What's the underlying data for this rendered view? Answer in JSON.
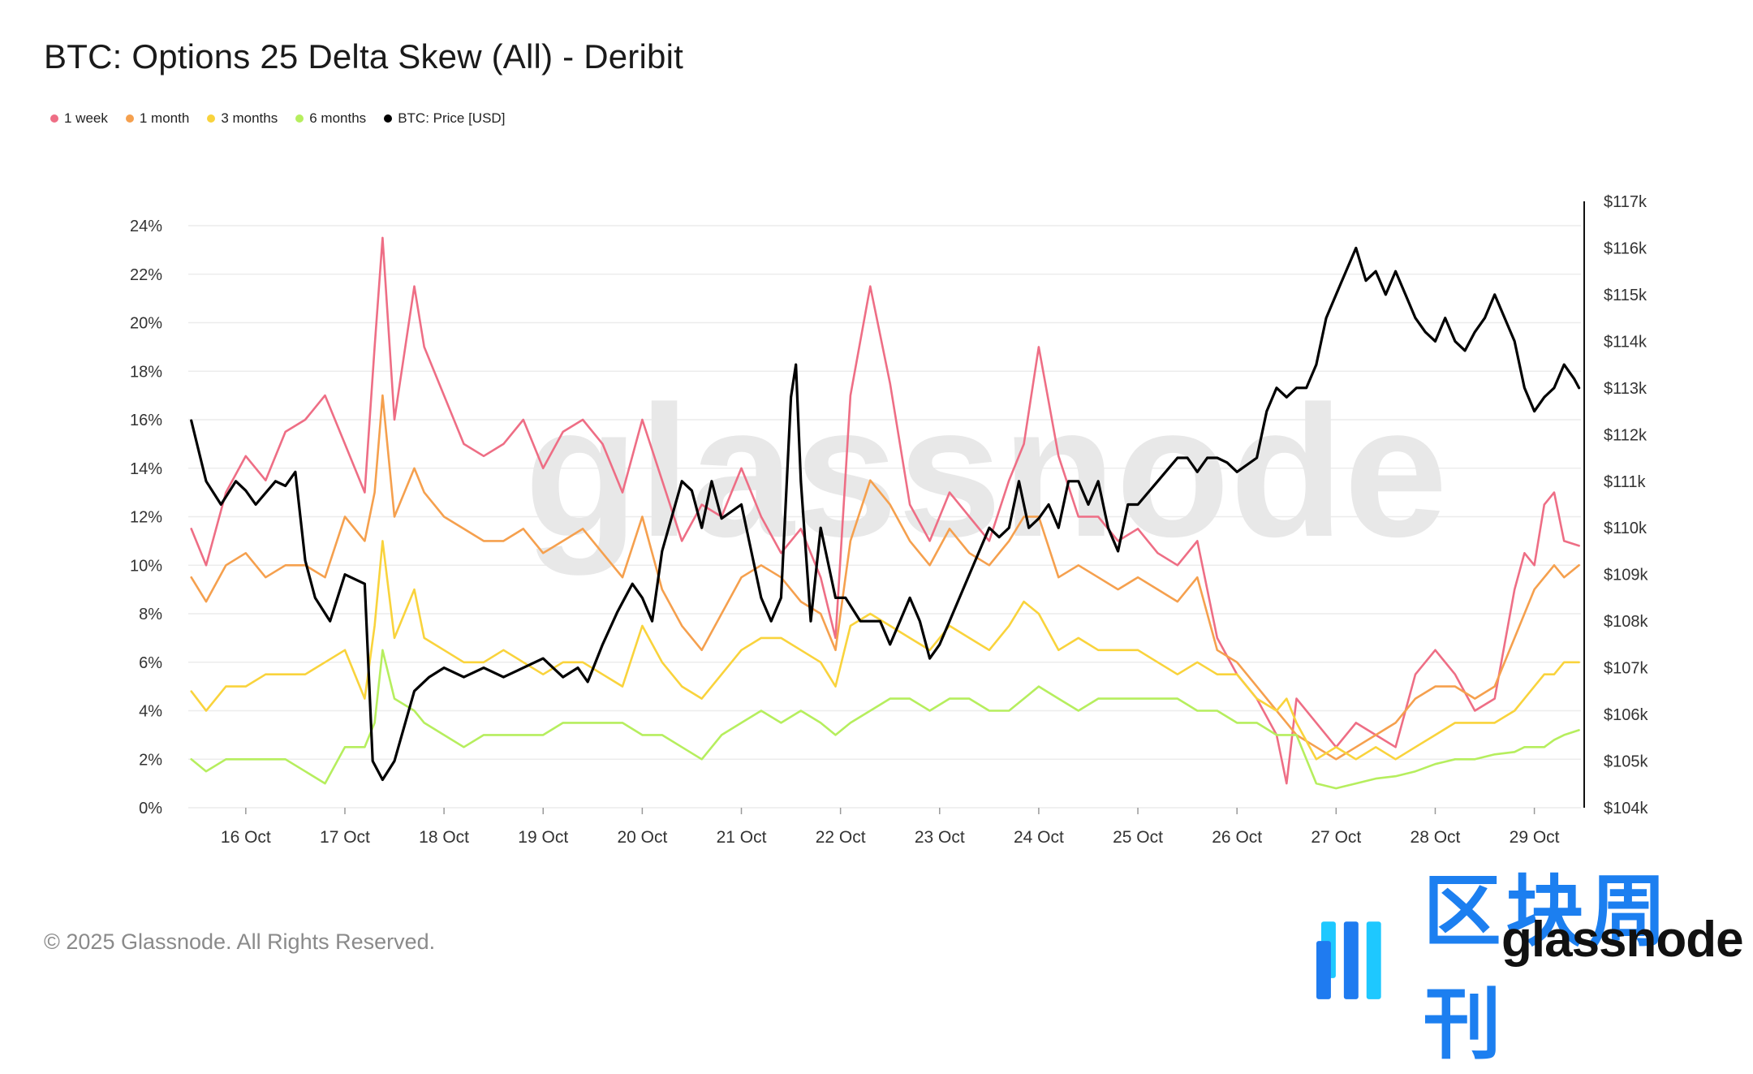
{
  "title": "BTC: Options 25 Delta Skew (All) - Deribit",
  "footer": "© 2025 Glassnode. All Rights Reserved.",
  "watermark": "glassnode",
  "branding": {
    "cn_logo_text": "区块周刊",
    "en_logo_text": "glassnode"
  },
  "legend": [
    {
      "label": "1 week",
      "color": "#ee6e85"
    },
    {
      "label": "1 month",
      "color": "#f5a04e"
    },
    {
      "label": "3 months",
      "color": "#f9d33c"
    },
    {
      "label": "6 months",
      "color": "#b6ee5e"
    },
    {
      "label": "BTC: Price [USD]",
      "color": "#000000"
    }
  ],
  "chart_data": {
    "type": "line",
    "title": "BTC: Options 25 Delta Skew (All) - Deribit",
    "x_ticks": [
      "16 Oct",
      "17 Oct",
      "18 Oct",
      "19 Oct",
      "20 Oct",
      "21 Oct",
      "22 Oct",
      "23 Oct",
      "24 Oct",
      "25 Oct",
      "26 Oct",
      "27 Oct",
      "28 Oct",
      "29 Oct"
    ],
    "x_range": [
      15.42,
      29.47
    ],
    "y_left": {
      "ticks": [
        "0%",
        "2%",
        "4%",
        "6%",
        "8%",
        "10%",
        "12%",
        "14%",
        "16%",
        "18%",
        "20%",
        "22%",
        "24%"
      ],
      "range": [
        0,
        24
      ],
      "unit": "%"
    },
    "y_right": {
      "ticks": [
        "$104k",
        "$105k",
        "$106k",
        "$107k",
        "$108k",
        "$109k",
        "$110k",
        "$111k",
        "$112k",
        "$113k",
        "$114k",
        "$115k",
        "$116k",
        "$117k"
      ],
      "range": [
        104,
        117
      ],
      "unit": "k USD"
    },
    "series": [
      {
        "name": "1 week",
        "axis": "left",
        "color": "#ee6e85",
        "x": [
          15.45,
          15.6,
          15.8,
          16.0,
          16.2,
          16.4,
          16.6,
          16.8,
          17.0,
          17.2,
          17.3,
          17.38,
          17.5,
          17.7,
          17.8,
          18.0,
          18.2,
          18.4,
          18.6,
          18.8,
          19.0,
          19.2,
          19.4,
          19.6,
          19.8,
          20.0,
          20.2,
          20.4,
          20.6,
          20.8,
          21.0,
          21.2,
          21.4,
          21.6,
          21.8,
          21.95,
          22.1,
          22.3,
          22.5,
          22.7,
          22.9,
          23.1,
          23.3,
          23.5,
          23.7,
          23.85,
          24.0,
          24.2,
          24.4,
          24.6,
          24.8,
          25.0,
          25.2,
          25.4,
          25.6,
          25.8,
          26.0,
          26.2,
          26.4,
          26.5,
          26.6,
          26.8,
          27.0,
          27.2,
          27.4,
          27.6,
          27.8,
          28.0,
          28.2,
          28.4,
          28.6,
          28.8,
          28.9,
          29.0,
          29.1,
          29.2,
          29.3,
          29.45
        ],
        "values": [
          11.5,
          10.0,
          13.0,
          14.5,
          13.5,
          15.5,
          16.0,
          17.0,
          15.0,
          13.0,
          19.0,
          23.5,
          16.0,
          21.5,
          19.0,
          17.0,
          15.0,
          14.5,
          15.0,
          16.0,
          14.0,
          15.5,
          16.0,
          15.0,
          13.0,
          16.0,
          13.5,
          11.0,
          12.5,
          12.0,
          14.0,
          12.0,
          10.5,
          11.5,
          9.5,
          7.0,
          17.0,
          21.5,
          17.5,
          12.5,
          11.0,
          13.0,
          12.0,
          11.0,
          13.5,
          15.0,
          19.0,
          14.5,
          12.0,
          12.0,
          11.0,
          11.5,
          10.5,
          10.0,
          11.0,
          7.0,
          5.5,
          4.5,
          3.0,
          1.0,
          4.5,
          3.5,
          2.5,
          3.5,
          3.0,
          2.5,
          5.5,
          6.5,
          5.5,
          4.0,
          4.5,
          9.0,
          10.5,
          10.0,
          12.5,
          13.0,
          11.0,
          10.8
        ]
      },
      {
        "name": "1 month",
        "axis": "left",
        "color": "#f5a04e",
        "x": [
          15.45,
          15.6,
          15.8,
          16.0,
          16.2,
          16.4,
          16.6,
          16.8,
          17.0,
          17.2,
          17.3,
          17.38,
          17.5,
          17.7,
          17.8,
          18.0,
          18.2,
          18.4,
          18.6,
          18.8,
          19.0,
          19.2,
          19.4,
          19.6,
          19.8,
          20.0,
          20.2,
          20.4,
          20.6,
          20.8,
          21.0,
          21.2,
          21.4,
          21.6,
          21.8,
          21.95,
          22.1,
          22.3,
          22.5,
          22.7,
          22.9,
          23.1,
          23.3,
          23.5,
          23.7,
          23.85,
          24.0,
          24.2,
          24.4,
          24.6,
          24.8,
          25.0,
          25.2,
          25.4,
          25.6,
          25.8,
          26.0,
          26.2,
          26.4,
          26.5,
          26.6,
          26.8,
          27.0,
          27.2,
          27.4,
          27.6,
          27.8,
          28.0,
          28.2,
          28.4,
          28.6,
          28.8,
          28.9,
          29.0,
          29.1,
          29.2,
          29.3,
          29.45
        ],
        "values": [
          9.5,
          8.5,
          10.0,
          10.5,
          9.5,
          10.0,
          10.0,
          9.5,
          12.0,
          11.0,
          13.0,
          17.0,
          12.0,
          14.0,
          13.0,
          12.0,
          11.5,
          11.0,
          11.0,
          11.5,
          10.5,
          11.0,
          11.5,
          10.5,
          9.5,
          12.0,
          9.0,
          7.5,
          6.5,
          8.0,
          9.5,
          10.0,
          9.5,
          8.5,
          8.0,
          6.5,
          11.0,
          13.5,
          12.5,
          11.0,
          10.0,
          11.5,
          10.5,
          10.0,
          11.0,
          12.0,
          12.0,
          9.5,
          10.0,
          9.5,
          9.0,
          9.5,
          9.0,
          8.5,
          9.5,
          6.5,
          6.0,
          5.0,
          4.0,
          3.5,
          3.0,
          2.5,
          2.0,
          2.5,
          3.0,
          3.5,
          4.5,
          5.0,
          5.0,
          4.5,
          5.0,
          7.0,
          8.0,
          9.0,
          9.5,
          10.0,
          9.5,
          10.0
        ]
      },
      {
        "name": "3 months",
        "axis": "left",
        "color": "#f9d33c",
        "x": [
          15.45,
          15.6,
          15.8,
          16.0,
          16.2,
          16.4,
          16.6,
          16.8,
          17.0,
          17.2,
          17.3,
          17.38,
          17.5,
          17.7,
          17.8,
          18.0,
          18.2,
          18.4,
          18.6,
          18.8,
          19.0,
          19.2,
          19.4,
          19.6,
          19.8,
          20.0,
          20.2,
          20.4,
          20.6,
          20.8,
          21.0,
          21.2,
          21.4,
          21.6,
          21.8,
          21.95,
          22.1,
          22.3,
          22.5,
          22.7,
          22.9,
          23.1,
          23.3,
          23.5,
          23.7,
          23.85,
          24.0,
          24.2,
          24.4,
          24.6,
          24.8,
          25.0,
          25.2,
          25.4,
          25.6,
          25.8,
          26.0,
          26.2,
          26.4,
          26.5,
          26.6,
          26.8,
          27.0,
          27.2,
          27.4,
          27.6,
          27.8,
          28.0,
          28.2,
          28.4,
          28.6,
          28.8,
          28.9,
          29.0,
          29.1,
          29.2,
          29.3,
          29.45
        ],
        "values": [
          4.8,
          4.0,
          5.0,
          5.0,
          5.5,
          5.5,
          5.5,
          6.0,
          6.5,
          4.5,
          7.5,
          11.0,
          7.0,
          9.0,
          7.0,
          6.5,
          6.0,
          6.0,
          6.5,
          6.0,
          5.5,
          6.0,
          6.0,
          5.5,
          5.0,
          7.5,
          6.0,
          5.0,
          4.5,
          5.5,
          6.5,
          7.0,
          7.0,
          6.5,
          6.0,
          5.0,
          7.5,
          8.0,
          7.5,
          7.0,
          6.5,
          7.5,
          7.0,
          6.5,
          7.5,
          8.5,
          8.0,
          6.5,
          7.0,
          6.5,
          6.5,
          6.5,
          6.0,
          5.5,
          6.0,
          5.5,
          5.5,
          4.5,
          4.0,
          4.5,
          3.5,
          2.0,
          2.5,
          2.0,
          2.5,
          2.0,
          2.5,
          3.0,
          3.5,
          3.5,
          3.5,
          4.0,
          4.5,
          5.0,
          5.5,
          5.5,
          6.0,
          6.0
        ]
      },
      {
        "name": "6 months",
        "axis": "left",
        "color": "#b6ee5e",
        "x": [
          15.45,
          15.6,
          15.8,
          16.0,
          16.2,
          16.4,
          16.6,
          16.8,
          17.0,
          17.2,
          17.3,
          17.38,
          17.5,
          17.7,
          17.8,
          18.0,
          18.2,
          18.4,
          18.6,
          18.8,
          19.0,
          19.2,
          19.4,
          19.6,
          19.8,
          20.0,
          20.2,
          20.4,
          20.6,
          20.8,
          21.0,
          21.2,
          21.4,
          21.6,
          21.8,
          21.95,
          22.1,
          22.3,
          22.5,
          22.7,
          22.9,
          23.1,
          23.3,
          23.5,
          23.7,
          23.85,
          24.0,
          24.2,
          24.4,
          24.6,
          24.8,
          25.0,
          25.2,
          25.4,
          25.6,
          25.8,
          26.0,
          26.2,
          26.4,
          26.5,
          26.6,
          26.8,
          27.0,
          27.2,
          27.4,
          27.6,
          27.8,
          28.0,
          28.2,
          28.4,
          28.6,
          28.8,
          28.9,
          29.0,
          29.1,
          29.2,
          29.3,
          29.45
        ],
        "values": [
          2.0,
          1.5,
          2.0,
          2.0,
          2.0,
          2.0,
          1.5,
          1.0,
          2.5,
          2.5,
          3.5,
          6.5,
          4.5,
          4.0,
          3.5,
          3.0,
          2.5,
          3.0,
          3.0,
          3.0,
          3.0,
          3.5,
          3.5,
          3.5,
          3.5,
          3.0,
          3.0,
          2.5,
          2.0,
          3.0,
          3.5,
          4.0,
          3.5,
          4.0,
          3.5,
          3.0,
          3.5,
          4.0,
          4.5,
          4.5,
          4.0,
          4.5,
          4.5,
          4.0,
          4.0,
          4.5,
          5.0,
          4.5,
          4.0,
          4.5,
          4.5,
          4.5,
          4.5,
          4.5,
          4.0,
          4.0,
          3.5,
          3.5,
          3.0,
          3.0,
          3.0,
          1.0,
          0.8,
          1.0,
          1.2,
          1.3,
          1.5,
          1.8,
          2.0,
          2.0,
          2.2,
          2.3,
          2.5,
          2.5,
          2.5,
          2.8,
          3.0,
          3.2
        ]
      },
      {
        "name": "BTC: Price [USD]",
        "axis": "right",
        "unit": "k USD",
        "color": "#000000",
        "x": [
          15.45,
          15.6,
          15.75,
          15.9,
          16.0,
          16.1,
          16.3,
          16.4,
          16.5,
          16.6,
          16.7,
          16.85,
          17.0,
          17.2,
          17.28,
          17.38,
          17.5,
          17.7,
          17.85,
          18.0,
          18.2,
          18.4,
          18.6,
          18.8,
          19.0,
          19.2,
          19.35,
          19.45,
          19.6,
          19.75,
          19.9,
          20.0,
          20.1,
          20.2,
          20.4,
          20.5,
          20.6,
          20.7,
          20.8,
          21.0,
          21.2,
          21.3,
          21.4,
          21.5,
          21.55,
          21.6,
          21.7,
          21.8,
          21.95,
          22.05,
          22.2,
          22.4,
          22.5,
          22.6,
          22.7,
          22.8,
          22.9,
          23.0,
          23.1,
          23.3,
          23.5,
          23.6,
          23.7,
          23.8,
          23.9,
          24.0,
          24.1,
          24.2,
          24.3,
          24.4,
          24.5,
          24.6,
          24.7,
          24.8,
          24.9,
          25.0,
          25.2,
          25.4,
          25.5,
          25.6,
          25.7,
          25.8,
          25.9,
          26.0,
          26.2,
          26.3,
          26.4,
          26.5,
          26.6,
          26.7,
          26.8,
          26.9,
          27.0,
          27.1,
          27.2,
          27.3,
          27.4,
          27.5,
          27.6,
          27.7,
          27.8,
          27.9,
          28.0,
          28.1,
          28.2,
          28.3,
          28.4,
          28.5,
          28.6,
          28.7,
          28.8,
          28.9,
          29.0,
          29.1,
          29.2,
          29.3,
          29.4,
          29.45
        ],
        "values": [
          112.3,
          111.0,
          110.5,
          111.0,
          110.8,
          110.5,
          111.0,
          110.9,
          111.2,
          109.3,
          108.5,
          108.0,
          109.0,
          108.8,
          105.0,
          104.6,
          105.0,
          106.5,
          106.8,
          107.0,
          106.8,
          107.0,
          106.8,
          107.0,
          107.2,
          106.8,
          107.0,
          106.7,
          107.5,
          108.2,
          108.8,
          108.5,
          108.0,
          109.5,
          111.0,
          110.8,
          110.0,
          111.0,
          110.2,
          110.5,
          108.5,
          108.0,
          108.5,
          112.8,
          113.5,
          111.0,
          108.0,
          110.0,
          108.5,
          108.5,
          108.0,
          108.0,
          107.5,
          108.0,
          108.5,
          108.0,
          107.2,
          107.5,
          108.0,
          109.0,
          110.0,
          109.8,
          110.0,
          111.0,
          110.0,
          110.2,
          110.5,
          110.0,
          111.0,
          111.0,
          110.5,
          111.0,
          110.0,
          109.5,
          110.5,
          110.5,
          111.0,
          111.5,
          111.5,
          111.2,
          111.5,
          111.5,
          111.4,
          111.2,
          111.5,
          112.5,
          113.0,
          112.8,
          113.0,
          113.0,
          113.5,
          114.5,
          115.0,
          115.5,
          116.0,
          115.3,
          115.5,
          115.0,
          115.5,
          115.0,
          114.5,
          114.2,
          114.0,
          114.5,
          114.0,
          113.8,
          114.2,
          114.5,
          115.0,
          114.5,
          114.0,
          113.0,
          112.5,
          112.8,
          113.0,
          113.5,
          113.2,
          113.0
        ]
      }
    ]
  }
}
